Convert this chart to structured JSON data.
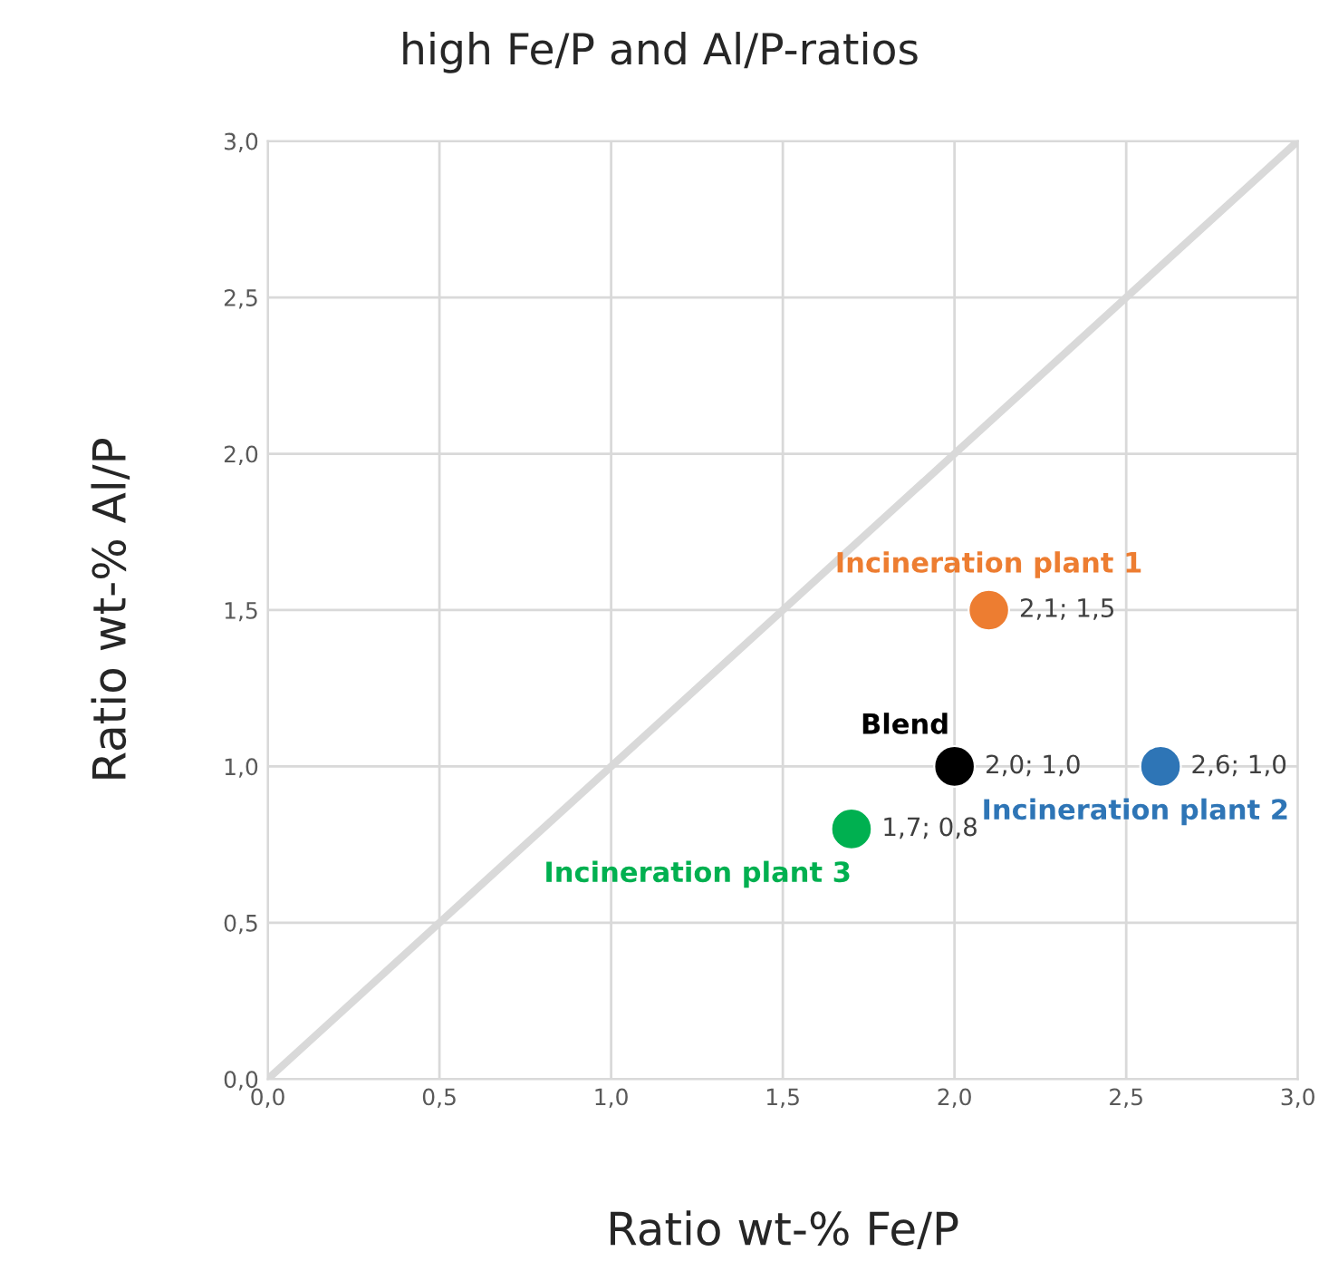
{
  "chart_data": {
    "type": "scatter",
    "title": "high Fe/P and Al/P-ratios",
    "xlabel": "Ratio wt-% Fe/P",
    "ylabel": "Ratio wt-% Al/P",
    "xlim": [
      0,
      3
    ],
    "ylim": [
      0,
      3
    ],
    "xticks": [
      {
        "value": 0,
        "label": "0,0"
      },
      {
        "value": 0.5,
        "label": "0,5"
      },
      {
        "value": 1,
        "label": "1,0"
      },
      {
        "value": 1.5,
        "label": "1,5"
      },
      {
        "value": 2,
        "label": "2,0"
      },
      {
        "value": 2.5,
        "label": "2,5"
      },
      {
        "value": 3,
        "label": "3,0"
      }
    ],
    "yticks": [
      {
        "value": 0,
        "label": "0,0"
      },
      {
        "value": 0.5,
        "label": "0,5"
      },
      {
        "value": 1,
        "label": "1,0"
      },
      {
        "value": 1.5,
        "label": "1,5"
      },
      {
        "value": 2,
        "label": "2,0"
      },
      {
        "value": 2.5,
        "label": "2,5"
      },
      {
        "value": 3,
        "label": "3,0"
      }
    ],
    "grid": true,
    "legend": false,
    "marker": "circle",
    "series": [
      {
        "type": "line",
        "marker": "none",
        "color": "#d9d9d9",
        "x": [
          0,
          3
        ],
        "values": [
          0,
          3
        ]
      },
      {
        "name": "Incineration plant 1",
        "color": "#ed7d31",
        "x": [
          2.1
        ],
        "values": [
          1.5
        ],
        "value_labels": [
          "2,1; 1,5"
        ]
      },
      {
        "name": "Blend",
        "color": "#000000",
        "x": [
          2.0
        ],
        "values": [
          1.0
        ],
        "value_labels": [
          "2,0; 1,0"
        ]
      },
      {
        "name": "Incineration plant 2",
        "color": "#2e75b6",
        "x": [
          2.6
        ],
        "values": [
          1.0
        ],
        "value_labels": [
          "2,6; 1,0"
        ]
      },
      {
        "name": "Incineration plant 3",
        "color": "#00b050",
        "x": [
          1.7
        ],
        "values": [
          0.8
        ],
        "value_labels": [
          "1,7; 0,8"
        ]
      }
    ]
  }
}
